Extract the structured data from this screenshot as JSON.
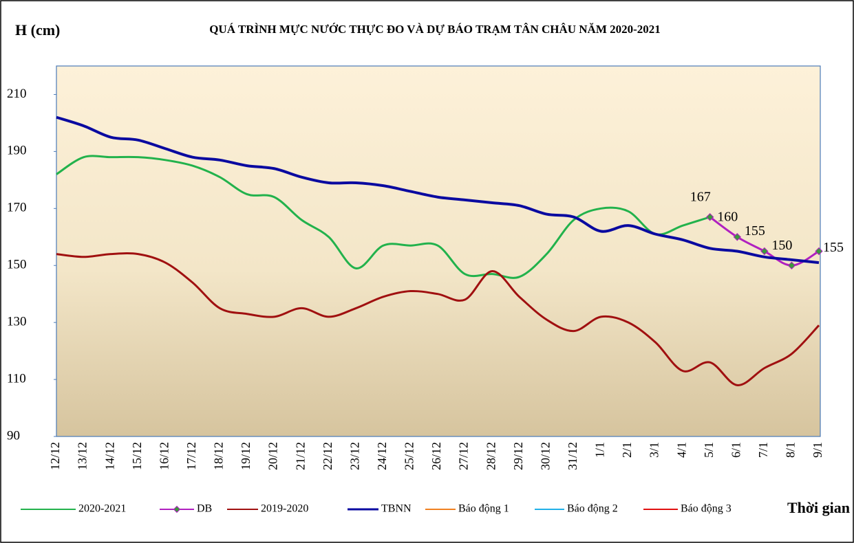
{
  "chart_data": {
    "type": "line",
    "title": "QUÁ TRÌNH MỰC NƯỚC THỰC ĐO VÀ DỰ BÁO TRẠM TÂN CHÂU NĂM 2020-2021",
    "y_label": "H (cm)",
    "x_label": "Thời gian",
    "categories": [
      "12/12",
      "13/12",
      "14/12",
      "15/12",
      "16/12",
      "17/12",
      "18/12",
      "19/12",
      "20/12",
      "21/12",
      "22/12",
      "23/12",
      "24/12",
      "25/12",
      "26/12",
      "27/12",
      "28/12",
      "29/12",
      "30/12",
      "31/12",
      "1/1",
      "2/1",
      "3/1",
      "4/1",
      "5/1",
      "6/1",
      "7/1",
      "8/1",
      "9/1"
    ],
    "ylim": [
      90,
      220
    ],
    "yticks": [
      90,
      110,
      130,
      150,
      170,
      190,
      210
    ],
    "series": [
      {
        "name": "2020-2021",
        "color": "#22b24c",
        "values": [
          182,
          188,
          188,
          188,
          187,
          185,
          181,
          175,
          174,
          166,
          160,
          149,
          157,
          157,
          157,
          147,
          147,
          146,
          154,
          166,
          170,
          169,
          161,
          164,
          167,
          null,
          null,
          null,
          null
        ]
      },
      {
        "name": "DB",
        "color": "#b020c0",
        "marker": "diamond",
        "marker_color": "#3a9a3a",
        "data_labels": true,
        "values": [
          null,
          null,
          null,
          null,
          null,
          null,
          null,
          null,
          null,
          null,
          null,
          null,
          null,
          null,
          null,
          null,
          null,
          null,
          null,
          null,
          null,
          null,
          null,
          null,
          167,
          160,
          155,
          150,
          155
        ]
      },
      {
        "name": "2019-2020",
        "color": "#a01010",
        "values": [
          154,
          153,
          154,
          154,
          151,
          144,
          135,
          133,
          132,
          135,
          132,
          135,
          139,
          141,
          140,
          138,
          148,
          139,
          131,
          127,
          132,
          130,
          123,
          113,
          116,
          108,
          114,
          119,
          129
        ]
      },
      {
        "name": "TBNN",
        "color": "#0a0aa0",
        "width": 4,
        "values": [
          202,
          199,
          195,
          194,
          191,
          188,
          187,
          185,
          184,
          181,
          179,
          179,
          178,
          176,
          174,
          173,
          172,
          171,
          168,
          167,
          162,
          164,
          161,
          159,
          156,
          155,
          153,
          152,
          151
        ]
      },
      {
        "name": "Báo động 1",
        "color": "#f08020",
        "values": [
          null,
          null,
          null,
          null,
          null,
          null,
          null,
          null,
          null,
          null,
          null,
          null,
          null,
          null,
          null,
          null,
          null,
          null,
          null,
          null,
          null,
          null,
          null,
          null,
          null,
          null,
          null,
          null,
          null
        ]
      },
      {
        "name": "Báo động 2",
        "color": "#20b0e8",
        "values": [
          null,
          null,
          null,
          null,
          null,
          null,
          null,
          null,
          null,
          null,
          null,
          null,
          null,
          null,
          null,
          null,
          null,
          null,
          null,
          null,
          null,
          null,
          null,
          null,
          null,
          null,
          null,
          null,
          null
        ]
      },
      {
        "name": "Báo động 3",
        "color": "#e01010",
        "values": [
          null,
          null,
          null,
          null,
          null,
          null,
          null,
          null,
          null,
          null,
          null,
          null,
          null,
          null,
          null,
          null,
          null,
          null,
          null,
          null,
          null,
          null,
          null,
          null,
          null,
          null,
          null,
          null,
          null
        ]
      }
    ]
  }
}
